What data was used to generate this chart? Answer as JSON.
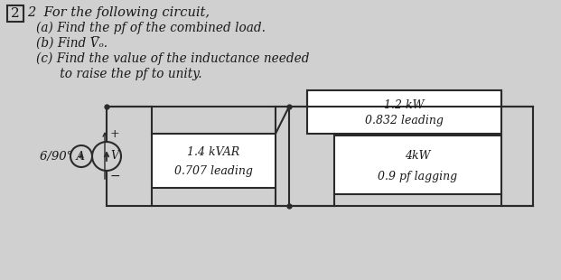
{
  "bg_color": "#d0d0d0",
  "title_line1": "2  For the following circuit,",
  "item_a": "(a) Find the pf of the combined load.",
  "item_b": "(b) Find V̅ₒ.",
  "item_c": "(c) Find the value of the inductance needed",
  "item_c2": "      to raise the pf to unity.",
  "source_label": "6/90° A",
  "box1_line1": "1.4 kVAR",
  "box1_line2": "0.707 leading",
  "box2_line1": "4kW",
  "box2_line2": "0.9 pf lagging",
  "box3_line1": "1.2 kW",
  "box3_line2": "0.832 leading",
  "text_color": "#1a1a1a",
  "box_edge_color": "#2a2a2a",
  "wire_color": "#2a2a2a",
  "font_size_title": 10.5,
  "font_size_items": 9.8,
  "font_size_circuit": 9.5,
  "font_size_box": 9.0
}
